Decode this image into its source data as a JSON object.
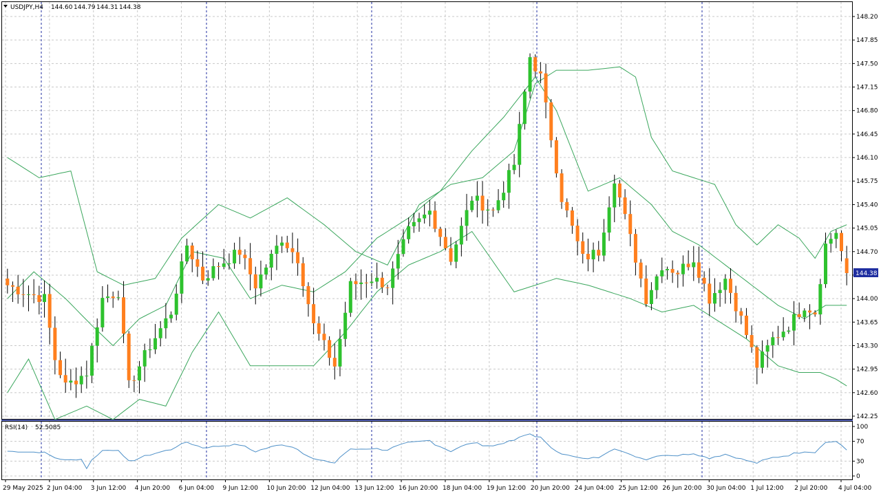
{
  "symbol_header": "USDJPY,H4",
  "ohlc": {
    "open": "144.60",
    "high": "144.79",
    "low": "144.31",
    "close": "144.38"
  },
  "current_price_label": "144.38",
  "rsi_header": {
    "label": "RSI(14)",
    "value": "52.5085"
  },
  "colors": {
    "bull": "#2ec22e",
    "bear": "#ff7f1e",
    "wick": "#000000",
    "bands": "#3aa65c",
    "rsi_line": "#4e90c8",
    "grid": "#c8c8c8",
    "separator": "#1f2ea0",
    "price_badge": "#1f2ea0",
    "frame": "#000000"
  },
  "icons": {
    "collapse": "triangle-down-icon"
  },
  "chart_data": [
    {
      "type": "candlestick",
      "title": "USDJPY,H4",
      "ylim": [
        142.2,
        148.35
      ],
      "y_ticks": [
        "148.20",
        "147.85",
        "147.50",
        "147.15",
        "146.80",
        "146.45",
        "146.10",
        "145.75",
        "145.40",
        "145.05",
        "144.70",
        "144.35",
        "144.00",
        "143.65",
        "143.30",
        "142.95",
        "142.60",
        "142.25"
      ],
      "x_ticks": [
        "29 May 2025",
        "2 Jun 04:00",
        "3 Jun 12:00",
        "4 Jun 20:00",
        "6 Jun 04:00",
        "9 Jun 12:00",
        "10 Jun 20:00",
        "12 Jun 04:00",
        "13 Jun 12:00",
        "16 Jun 20:00",
        "18 Jun 04:00",
        "19 Jun 12:00",
        "20 Jun 20:00",
        "24 Jun 04:00",
        "25 Jun 12:00",
        "26 Jun 20:00",
        "30 Jun 04:00",
        "1 Jul 12:00",
        "2 Jul 20:00",
        "4 Jul 04:00"
      ],
      "grid": true,
      "anchors": [
        {
          "x": 0,
          "close": 144.2
        },
        {
          "x": 3,
          "close": 144.1
        },
        {
          "x": 7,
          "close": 144.0
        },
        {
          "x": 9,
          "close": 143.1
        },
        {
          "x": 11,
          "close": 142.7
        },
        {
          "x": 15,
          "close": 142.9
        },
        {
          "x": 18,
          "close": 144.0
        },
        {
          "x": 21,
          "close": 144.1
        },
        {
          "x": 23,
          "close": 142.7
        },
        {
          "x": 27,
          "close": 143.3
        },
        {
          "x": 31,
          "close": 143.8
        },
        {
          "x": 34,
          "close": 144.8
        },
        {
          "x": 37,
          "close": 144.3
        },
        {
          "x": 40,
          "close": 144.5
        },
        {
          "x": 44,
          "close": 144.7
        },
        {
          "x": 47,
          "close": 144.2
        },
        {
          "x": 52,
          "close": 144.9
        },
        {
          "x": 55,
          "close": 144.6
        },
        {
          "x": 58,
          "close": 143.6
        },
        {
          "x": 62,
          "close": 143.0
        },
        {
          "x": 65,
          "close": 144.2
        },
        {
          "x": 69,
          "close": 144.3
        },
        {
          "x": 72,
          "close": 144.2
        },
        {
          "x": 76,
          "close": 145.0
        },
        {
          "x": 80,
          "close": 145.3
        },
        {
          "x": 84,
          "close": 144.6
        },
        {
          "x": 88,
          "close": 145.5
        },
        {
          "x": 92,
          "close": 145.3
        },
        {
          "x": 96,
          "close": 146.0
        },
        {
          "x": 99,
          "close": 147.6
        },
        {
          "x": 101,
          "close": 147.3
        },
        {
          "x": 105,
          "close": 145.5
        },
        {
          "x": 109,
          "close": 144.6
        },
        {
          "x": 112,
          "close": 144.7
        },
        {
          "x": 115,
          "close": 145.8
        },
        {
          "x": 118,
          "close": 144.9
        },
        {
          "x": 121,
          "close": 144.0
        },
        {
          "x": 124,
          "close": 144.5
        },
        {
          "x": 127,
          "close": 144.4
        },
        {
          "x": 130,
          "close": 144.6
        },
        {
          "x": 133,
          "close": 144.0
        },
        {
          "x": 136,
          "close": 144.3
        },
        {
          "x": 139,
          "close": 143.7
        },
        {
          "x": 142,
          "close": 143.0
        },
        {
          "x": 145,
          "close": 143.4
        },
        {
          "x": 148,
          "close": 143.6
        },
        {
          "x": 151,
          "close": 143.9
        },
        {
          "x": 153,
          "close": 143.8
        },
        {
          "x": 155,
          "close": 144.8
        },
        {
          "x": 157,
          "close": 145.0
        },
        {
          "x": 159,
          "close": 144.4
        }
      ],
      "bands": {
        "upper": [
          [
            0,
            146.1
          ],
          [
            6,
            145.8
          ],
          [
            12,
            145.9
          ],
          [
            17,
            144.4
          ],
          [
            22,
            144.2
          ],
          [
            28,
            144.3
          ],
          [
            33,
            144.9
          ],
          [
            40,
            145.4
          ],
          [
            46,
            145.2
          ],
          [
            53,
            145.5
          ],
          [
            60,
            145.1
          ],
          [
            66,
            144.7
          ],
          [
            72,
            144.5
          ],
          [
            78,
            145.4
          ],
          [
            84,
            145.7
          ],
          [
            90,
            145.8
          ],
          [
            96,
            146.2
          ],
          [
            100,
            147.2
          ],
          [
            104,
            147.4
          ],
          [
            110,
            147.4
          ],
          [
            116,
            147.45
          ],
          [
            119,
            147.3
          ],
          [
            122,
            146.4
          ],
          [
            126,
            145.9
          ],
          [
            130,
            145.8
          ],
          [
            134,
            145.7
          ],
          [
            138,
            145.1
          ],
          [
            142,
            144.8
          ],
          [
            146,
            145.1
          ],
          [
            150,
            144.9
          ],
          [
            153,
            144.6
          ],
          [
            156,
            145.0
          ],
          [
            159,
            145.1
          ]
        ],
        "middle": [
          [
            0,
            144.0
          ],
          [
            5,
            144.4
          ],
          [
            11,
            144.0
          ],
          [
            16,
            143.6
          ],
          [
            20,
            143.3
          ],
          [
            25,
            143.7
          ],
          [
            30,
            143.9
          ],
          [
            35,
            144.7
          ],
          [
            41,
            144.6
          ],
          [
            46,
            144.0
          ],
          [
            52,
            144.2
          ],
          [
            58,
            144.1
          ],
          [
            64,
            144.4
          ],
          [
            70,
            144.9
          ],
          [
            76,
            145.2
          ],
          [
            82,
            145.6
          ],
          [
            88,
            146.2
          ],
          [
            94,
            146.7
          ],
          [
            100,
            147.3
          ],
          [
            104,
            146.8
          ],
          [
            110,
            145.6
          ],
          [
            116,
            145.8
          ],
          [
            122,
            145.4
          ],
          [
            126,
            145.0
          ],
          [
            131,
            144.8
          ],
          [
            136,
            144.5
          ],
          [
            141,
            144.2
          ],
          [
            146,
            143.9
          ],
          [
            151,
            143.7
          ],
          [
            155,
            143.9
          ],
          [
            159,
            143.9
          ]
        ],
        "lower": [
          [
            0,
            142.6
          ],
          [
            4,
            143.1
          ],
          [
            9,
            142.2
          ],
          [
            15,
            142.4
          ],
          [
            20,
            142.2
          ],
          [
            25,
            142.5
          ],
          [
            30,
            142.4
          ],
          [
            35,
            143.2
          ],
          [
            40,
            143.8
          ],
          [
            46,
            143.0
          ],
          [
            52,
            143.0
          ],
          [
            58,
            143.0
          ],
          [
            64,
            143.5
          ],
          [
            70,
            144.1
          ],
          [
            76,
            144.5
          ],
          [
            82,
            144.7
          ],
          [
            88,
            145.0
          ],
          [
            96,
            144.1
          ],
          [
            104,
            144.3
          ],
          [
            110,
            144.2
          ],
          [
            118,
            144.0
          ],
          [
            124,
            143.8
          ],
          [
            130,
            143.9
          ],
          [
            136,
            143.6
          ],
          [
            140,
            143.4
          ],
          [
            146,
            143.0
          ],
          [
            150,
            142.9
          ],
          [
            154,
            142.9
          ],
          [
            157,
            142.8
          ],
          [
            159,
            142.7
          ]
        ]
      }
    },
    {
      "type": "line",
      "title": "RSI(14) 52.5085",
      "ylim": [
        0,
        100
      ],
      "y_ticks": [
        "100",
        "70",
        "30",
        "0"
      ],
      "grid": true,
      "last_value": 52.5085
    }
  ]
}
